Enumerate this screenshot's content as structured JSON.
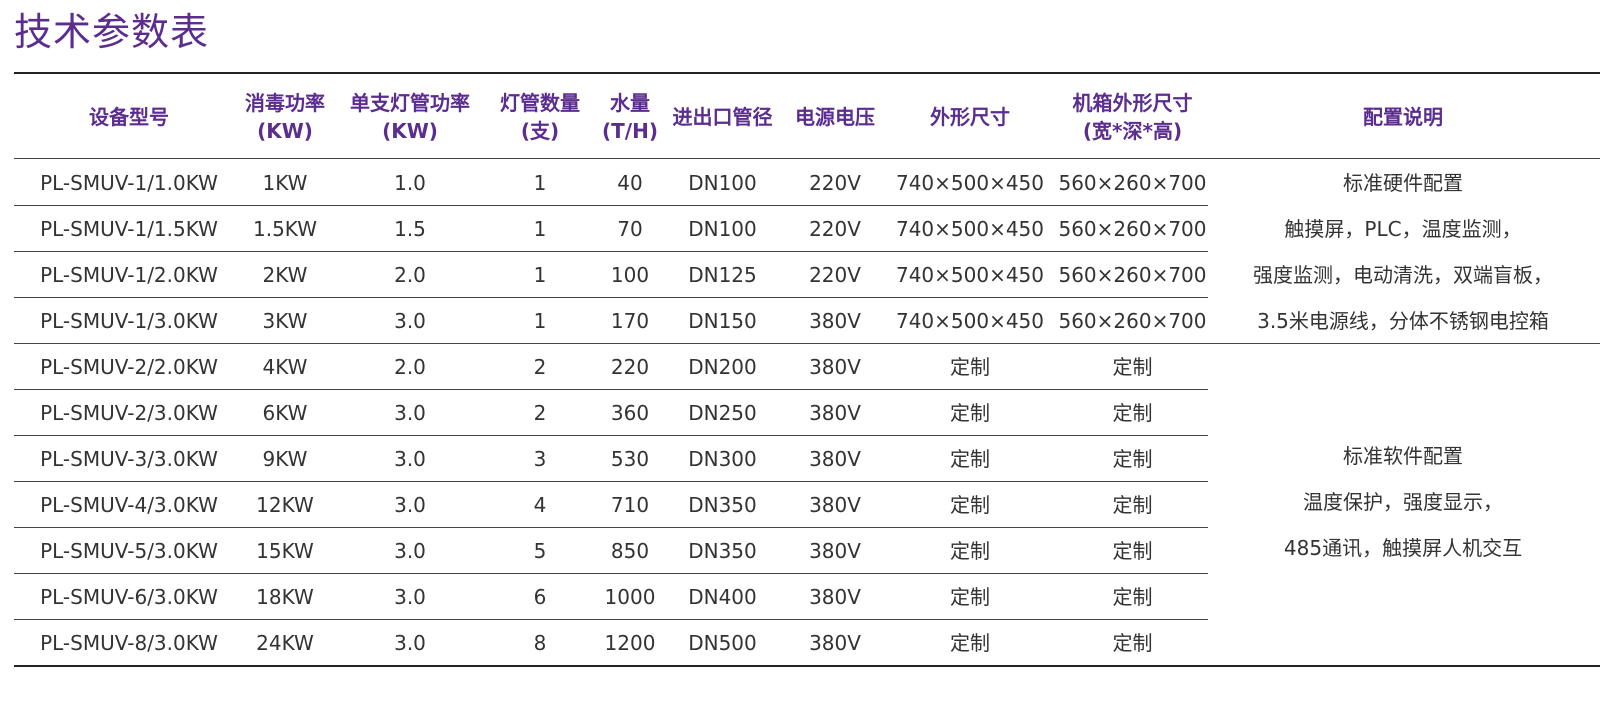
{
  "title": "技术参数表",
  "columns": [
    {
      "line1": "设备型号",
      "line2": ""
    },
    {
      "line1": "消毒功率",
      "line2": "(KW)"
    },
    {
      "line1": "单支灯管功率",
      "line2": "(KW)"
    },
    {
      "line1": "灯管数量",
      "line2": "(支)"
    },
    {
      "line1": "水量",
      "line2": "(T/H)"
    },
    {
      "line1": "进出口管径",
      "line2": ""
    },
    {
      "line1": "电源电压",
      "line2": ""
    },
    {
      "line1": "外形尺寸",
      "line2": ""
    },
    {
      "line1": "机箱外形尺寸",
      "line2": "(宽*深*高)"
    },
    {
      "line1": "配置说明",
      "line2": ""
    }
  ],
  "rows": [
    [
      "PL-SMUV-1/1.0KW",
      "1KW",
      "1.0",
      "1",
      "40",
      "DN100",
      "220V",
      "740×500×450",
      "560×260×700"
    ],
    [
      "PL-SMUV-1/1.5KW",
      "1.5KW",
      "1.5",
      "1",
      "70",
      "DN100",
      "220V",
      "740×500×450",
      "560×260×700"
    ],
    [
      "PL-SMUV-1/2.0KW",
      "2KW",
      "2.0",
      "1",
      "100",
      "DN125",
      "220V",
      "740×500×450",
      "560×260×700"
    ],
    [
      "PL-SMUV-1/3.0KW",
      "3KW",
      "3.0",
      "1",
      "170",
      "DN150",
      "380V",
      "740×500×450",
      "560×260×700"
    ],
    [
      "PL-SMUV-2/2.0KW",
      "4KW",
      "2.0",
      "2",
      "220",
      "DN200",
      "380V",
      "定制",
      "定制"
    ],
    [
      "PL-SMUV-2/3.0KW",
      "6KW",
      "3.0",
      "2",
      "360",
      "DN250",
      "380V",
      "定制",
      "定制"
    ],
    [
      "PL-SMUV-3/3.0KW",
      "9KW",
      "3.0",
      "3",
      "530",
      "DN300",
      "380V",
      "定制",
      "定制"
    ],
    [
      "PL-SMUV-4/3.0KW",
      "12KW",
      "3.0",
      "4",
      "710",
      "DN350",
      "380V",
      "定制",
      "定制"
    ],
    [
      "PL-SMUV-5/3.0KW",
      "15KW",
      "3.0",
      "5",
      "850",
      "DN350",
      "380V",
      "定制",
      "定制"
    ],
    [
      "PL-SMUV-6/3.0KW",
      "18KW",
      "3.0",
      "6",
      "1000",
      "DN400",
      "380V",
      "定制",
      "定制"
    ],
    [
      "PL-SMUV-8/3.0KW",
      "24KW",
      "3.0",
      "8",
      "1200",
      "DN500",
      "380V",
      "定制",
      "定制"
    ]
  ],
  "notes": {
    "hardware": [
      "标准硬件配置",
      "触摸屏，PLC，温度监测，",
      "强度监测，电动清洗，双端盲板，",
      "3.5米电源线，分体不锈钢电控箱"
    ],
    "software": [
      "标准软件配置",
      "温度保护，强度显示，",
      "485通讯，触摸屏人机交互"
    ]
  },
  "colors": {
    "accent": "#5b2d8e",
    "text": "#333333",
    "rule": "#222222"
  }
}
